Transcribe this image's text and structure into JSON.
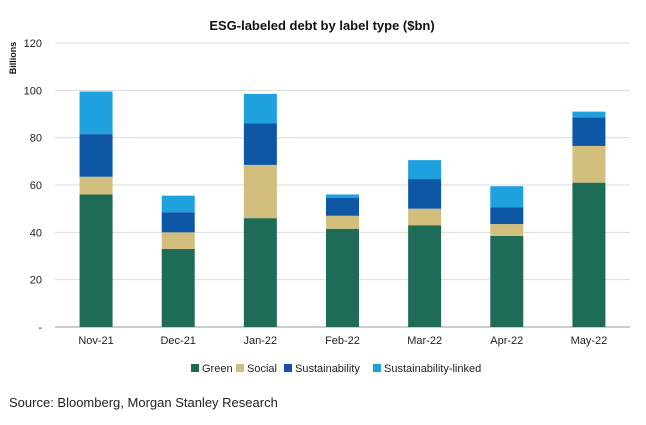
{
  "chart_data": {
    "type": "bar",
    "stacked": true,
    "title": "ESG-labeled debt by label type ($bn)",
    "ylabel": "Billions",
    "xlabel": "",
    "ylim": [
      0,
      120
    ],
    "yticks": [
      0,
      20,
      40,
      60,
      80,
      100,
      120
    ],
    "ytick_labels": [
      "-",
      "20",
      "40",
      "60",
      "80",
      "100",
      "120"
    ],
    "grid": true,
    "legend_position": "bottom",
    "categories": [
      "Nov-21",
      "Dec-21",
      "Jan-22",
      "Feb-22",
      "Mar-22",
      "Apr-22",
      "May-22"
    ],
    "series": [
      {
        "name": "Green",
        "color": "#1e6b57",
        "values": [
          56,
          33,
          46,
          41.5,
          43,
          38.5,
          61
        ]
      },
      {
        "name": "Social",
        "color": "#d2bf7e",
        "values": [
          7.5,
          7,
          22.5,
          5.5,
          7,
          5,
          15.5
        ]
      },
      {
        "name": "Sustainability",
        "color": "#0e57a5",
        "values": [
          18,
          8.5,
          17.5,
          7.5,
          12.5,
          7,
          12
        ]
      },
      {
        "name": "Sustainability-linked",
        "color": "#1fa1e0",
        "values": [
          18,
          7,
          12.5,
          1.5,
          8,
          9,
          2.5
        ]
      }
    ]
  },
  "source": "Source: Bloomberg, Morgan Stanley Research"
}
